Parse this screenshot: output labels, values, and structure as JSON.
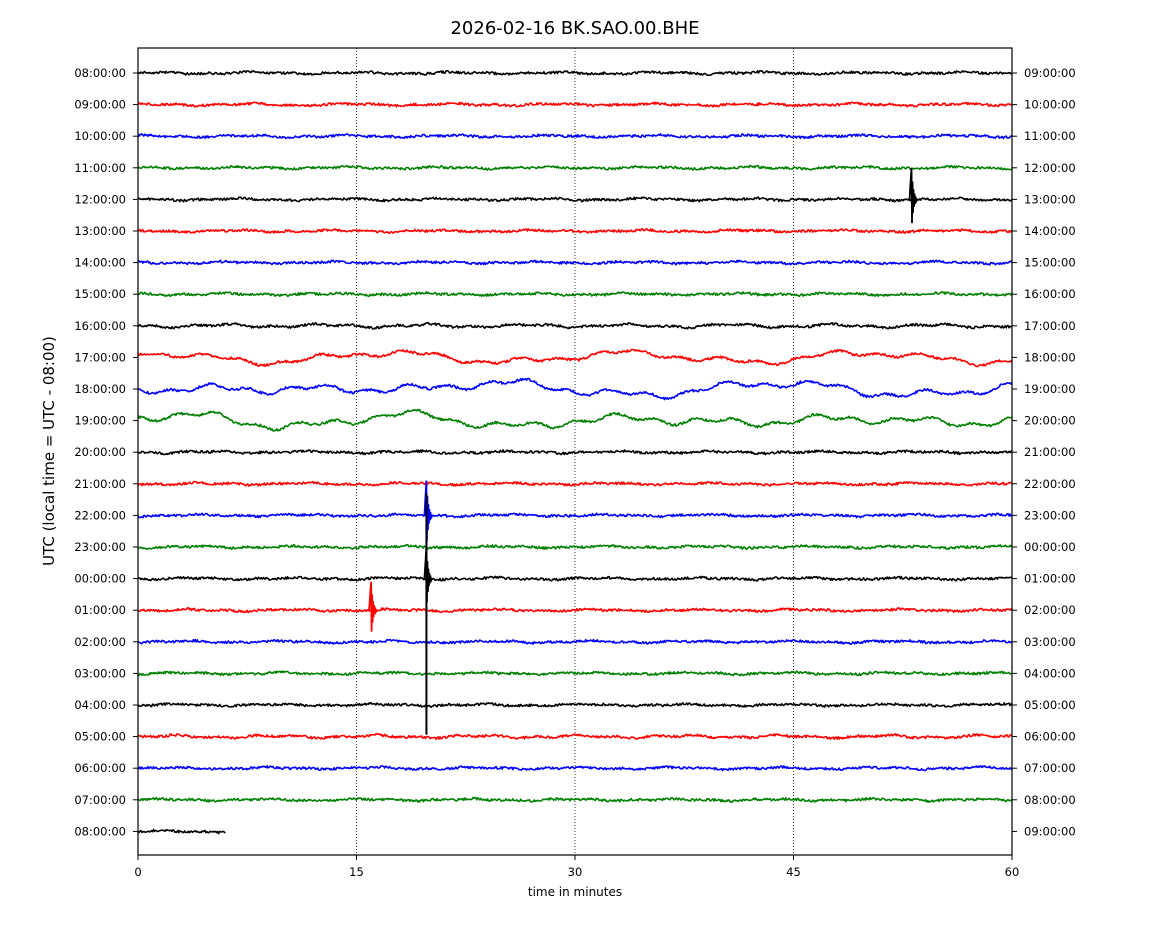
{
  "chart_data": {
    "type": "line",
    "title": "2026-02-16 BK.SAO.00.BHE",
    "xlabel": "time in minutes",
    "ylabel": "UTC (local time = UTC - 08:00)",
    "xlim": [
      0,
      60
    ],
    "x_ticks": [
      0,
      15,
      30,
      45,
      60
    ],
    "x_tick_labels": [
      "0",
      "15",
      "30",
      "45",
      "60"
    ],
    "grid": "vertical dotted",
    "colors": [
      "#000000",
      "#ff0000",
      "#0000ff",
      "#008000"
    ],
    "left_labels": [
      "08:00:00",
      "09:00:00",
      "10:00:00",
      "11:00:00",
      "12:00:00",
      "13:00:00",
      "14:00:00",
      "15:00:00",
      "16:00:00",
      "17:00:00",
      "18:00:00",
      "19:00:00",
      "20:00:00",
      "21:00:00",
      "22:00:00",
      "23:00:00",
      "00:00:00",
      "01:00:00",
      "02:00:00",
      "03:00:00",
      "04:00:00",
      "05:00:00",
      "06:00:00",
      "07:00:00",
      "08:00:00"
    ],
    "right_labels": [
      "09:00:00",
      "10:00:00",
      "11:00:00",
      "12:00:00",
      "13:00:00",
      "14:00:00",
      "15:00:00",
      "16:00:00",
      "17:00:00",
      "18:00:00",
      "19:00:00",
      "20:00:00",
      "21:00:00",
      "22:00:00",
      "23:00:00",
      "00:00:00",
      "01:00:00",
      "02:00:00",
      "03:00:00",
      "04:00:00",
      "05:00:00",
      "06:00:00",
      "07:00:00",
      "08:00:00",
      "09:00:00"
    ],
    "last_trace_end_minute": 6,
    "events": [
      {
        "trace": "12:00:00",
        "minute": 53.1,
        "amplitude": 1.0
      },
      {
        "trace": "22:00:00",
        "minute": 19.8,
        "amplitude": 1.1
      },
      {
        "trace": "01:00:00",
        "minute": 16.0,
        "amplitude": 0.9
      },
      {
        "trace": "00:00:00",
        "minute": 19.8,
        "amplitude": 1.0
      }
    ]
  }
}
